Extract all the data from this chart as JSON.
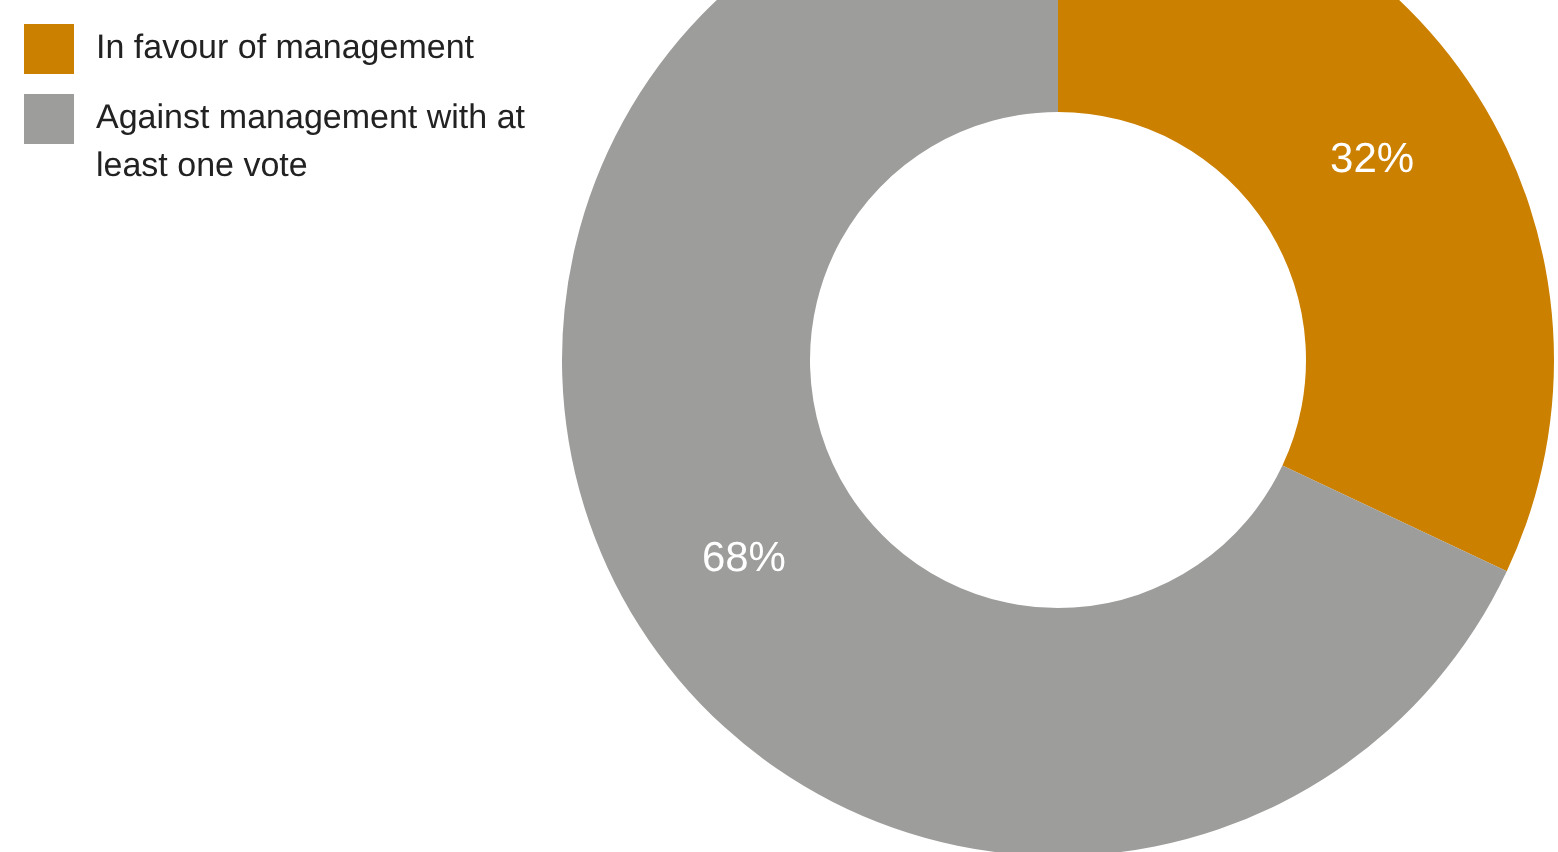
{
  "chart_data": {
    "type": "donut",
    "categories": [
      "In favour of management",
      "Against management with at least one vote"
    ],
    "values": [
      32,
      68
    ],
    "colors": [
      "#cc8000",
      "#9d9d9b"
    ],
    "value_labels": [
      "32%",
      "68%"
    ],
    "legend": "top left"
  }
}
